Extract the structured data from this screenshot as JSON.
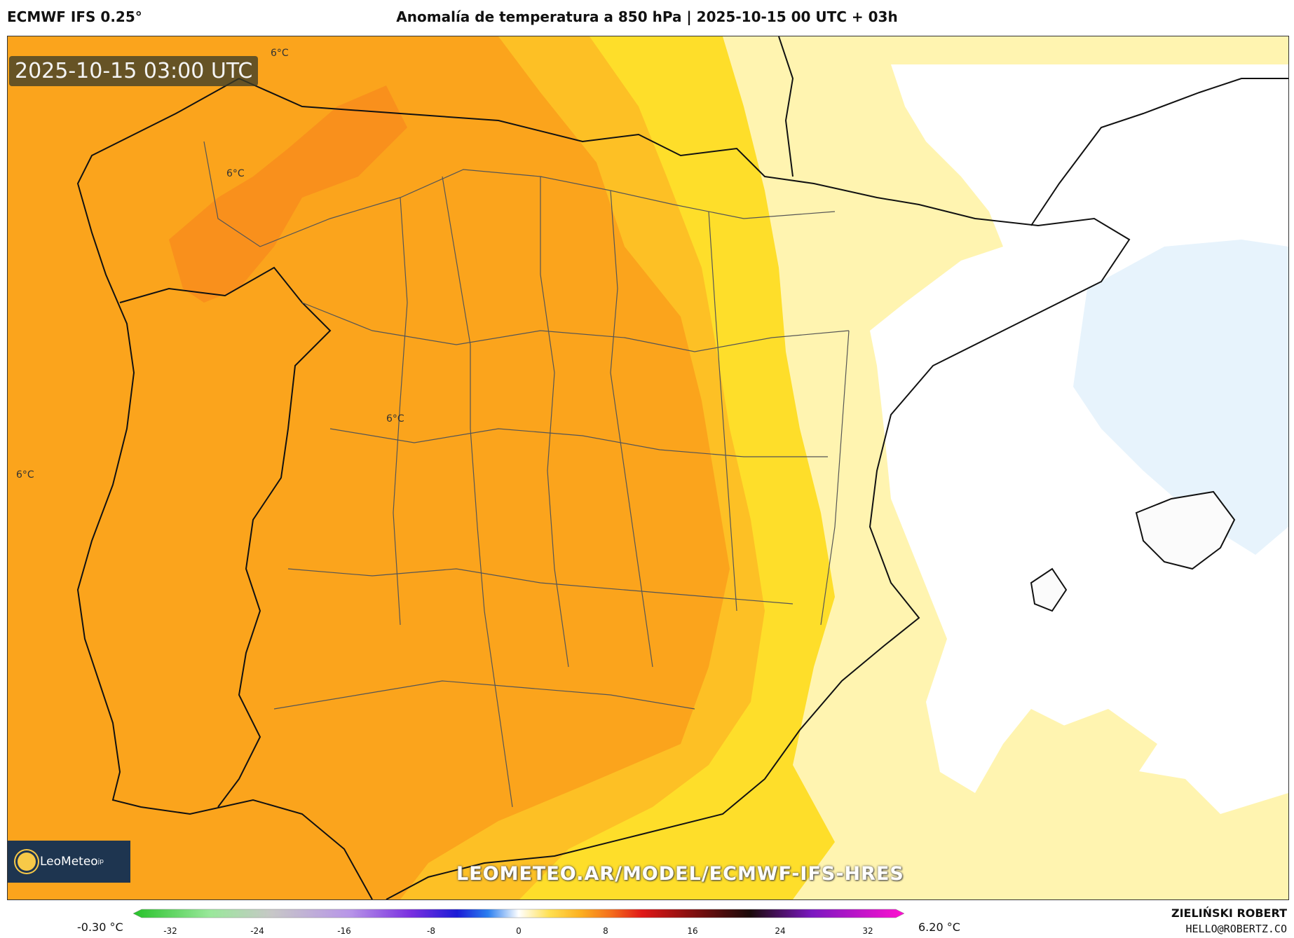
{
  "header": {
    "model": "ECMWF IFS 0.25°",
    "title": "Anomalía de temperatura a 850 hPa | 2025-10-15 00 UTC + 03h"
  },
  "map": {
    "timestamp": "2025-10-15 03:00 UTC",
    "contour_labels": [
      "6°C",
      "6°C",
      "6°C",
      "6°C"
    ],
    "watermark_url": "LEOMETEO.AR/MODEL/ECMWF-IFS-HRES",
    "logo_text": "LeoMeteo",
    "logo_suffix": "jp",
    "colors": {
      "anom_deep": "#f9901c",
      "anom_strong": "#fba41c",
      "anom_mid": "#fdc025",
      "anom_yellow": "#fede2a",
      "anom_light": "#fff4b0",
      "neutral": "#ffffff",
      "cool": "#e7f3fc"
    }
  },
  "colorbar": {
    "min_label": "-0.30 °C",
    "max_label": "6.20 °C",
    "ticks": [
      "-32",
      "-24",
      "-16",
      "-8",
      "0",
      "8",
      "16",
      "24",
      "32"
    ],
    "range": [
      -32,
      32
    ]
  },
  "credit": {
    "name": "ZIELIŃSKI ROBERT",
    "email": "HELLO@ROBERTZ.CO"
  }
}
